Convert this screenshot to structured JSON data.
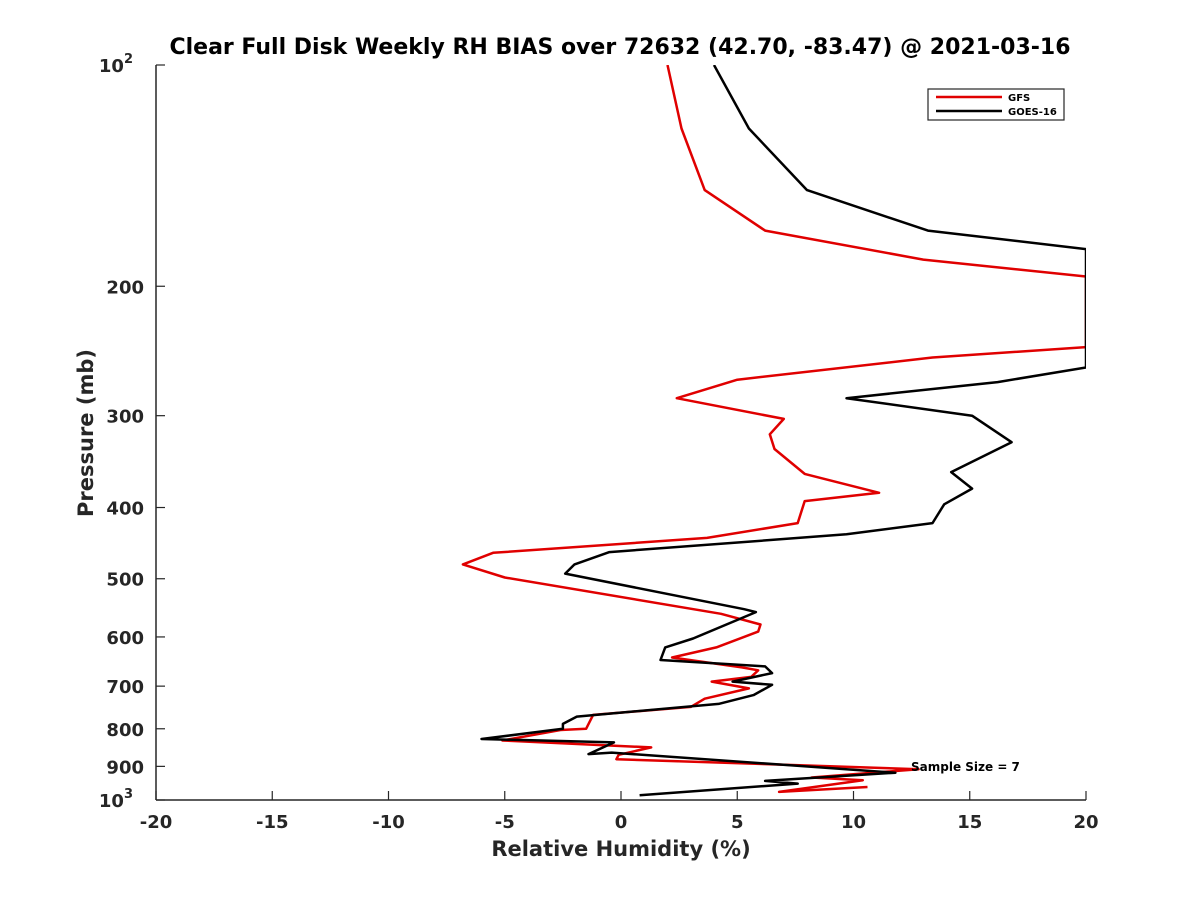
{
  "chart_data": {
    "type": "line",
    "title": "Clear Full Disk Weekly RH BIAS over 72632 (42.70, -83.47) @ 2021-03-16",
    "xlabel": "Relative Humidity (%)",
    "ylabel": "Pressure (mb)",
    "xlim": [
      -20,
      20
    ],
    "ylim": [
      100,
      1000
    ],
    "y_scale": "log",
    "y_reversed": true,
    "grid": false,
    "legend_position": "top-right",
    "x_ticks": [
      "-20",
      "-15",
      "-10",
      "-5",
      "0",
      "5",
      "10",
      "15",
      "20"
    ],
    "y_ticks": [
      {
        "value": 100,
        "label": "10",
        "sup": "2"
      },
      {
        "value": 200,
        "label": "200",
        "sup": ""
      },
      {
        "value": 300,
        "label": "300",
        "sup": ""
      },
      {
        "value": 400,
        "label": "400",
        "sup": ""
      },
      {
        "value": 500,
        "label": "500",
        "sup": ""
      },
      {
        "value": 600,
        "label": "600",
        "sup": ""
      },
      {
        "value": 700,
        "label": "700",
        "sup": ""
      },
      {
        "value": 800,
        "label": "800",
        "sup": ""
      },
      {
        "value": 900,
        "label": "900",
        "sup": ""
      },
      {
        "value": 1000,
        "label": "10",
        "sup": "3"
      }
    ],
    "annotation": "Sample Size = 7",
    "series": [
      {
        "name": "GFS",
        "color": "#e00000",
        "points": [
          [
            2.0,
            100
          ],
          [
            2.6,
            122
          ],
          [
            3.6,
            148
          ],
          [
            6.2,
            168
          ],
          [
            13.0,
            184
          ],
          [
            20.0,
            194
          ],
          [
            20.0,
            242
          ],
          [
            13.4,
            250
          ],
          [
            5.0,
            268
          ],
          [
            2.4,
            284
          ],
          [
            7.0,
            303
          ],
          [
            6.4,
            318
          ],
          [
            6.6,
            333
          ],
          [
            7.9,
            360
          ],
          [
            11.1,
            382
          ],
          [
            7.9,
            392
          ],
          [
            7.6,
            420
          ],
          [
            3.7,
            440
          ],
          [
            -5.5,
            461
          ],
          [
            -6.8,
            478
          ],
          [
            -5.0,
            498
          ],
          [
            4.3,
            558
          ],
          [
            6.0,
            577
          ],
          [
            5.9,
            590
          ],
          [
            4.1,
            620
          ],
          [
            2.2,
            640
          ],
          [
            5.2,
            660
          ],
          [
            5.9,
            666
          ],
          [
            5.6,
            680
          ],
          [
            3.9,
            690
          ],
          [
            5.5,
            705
          ],
          [
            3.6,
            728
          ],
          [
            3.0,
            747
          ],
          [
            -1.2,
            766
          ],
          [
            -1.5,
            800
          ],
          [
            -2.6,
            803
          ],
          [
            -5.1,
            830
          ],
          [
            1.3,
            848
          ],
          [
            -0.1,
            868
          ],
          [
            -0.2,
            880
          ],
          [
            12.8,
            908
          ],
          [
            8.2,
            932
          ],
          [
            10.4,
            940
          ],
          [
            6.8,
            975
          ],
          [
            10.6,
            960
          ]
        ]
      },
      {
        "name": "GOES-16",
        "color": "#000000",
        "points": [
          [
            4.0,
            100
          ],
          [
            5.5,
            122
          ],
          [
            8.0,
            148
          ],
          [
            13.2,
            168
          ],
          [
            20.0,
            178
          ],
          [
            20.0,
            258
          ],
          [
            16.2,
            270
          ],
          [
            9.7,
            284
          ],
          [
            15.1,
            300
          ],
          [
            16.8,
            326
          ],
          [
            14.2,
            358
          ],
          [
            15.1,
            377
          ],
          [
            13.9,
            396
          ],
          [
            13.4,
            420
          ],
          [
            9.7,
            435
          ],
          [
            -0.5,
            460
          ],
          [
            -2.0,
            478
          ],
          [
            -2.4,
            492
          ],
          [
            5.3,
            550
          ],
          [
            5.8,
            555
          ],
          [
            3.1,
            603
          ],
          [
            1.9,
            620
          ],
          [
            1.7,
            645
          ],
          [
            6.2,
            658
          ],
          [
            6.5,
            672
          ],
          [
            4.8,
            690
          ],
          [
            6.5,
            697
          ],
          [
            5.7,
            720
          ],
          [
            4.2,
            740
          ],
          [
            -1.9,
            770
          ],
          [
            -2.5,
            788
          ],
          [
            -2.5,
            800
          ],
          [
            -6.0,
            826
          ],
          [
            -0.3,
            835
          ],
          [
            -1.4,
            866
          ],
          [
            -0.4,
            862
          ],
          [
            11.8,
            918
          ],
          [
            6.2,
            942
          ],
          [
            7.6,
            950
          ],
          [
            0.8,
            985
          ]
        ]
      }
    ]
  }
}
